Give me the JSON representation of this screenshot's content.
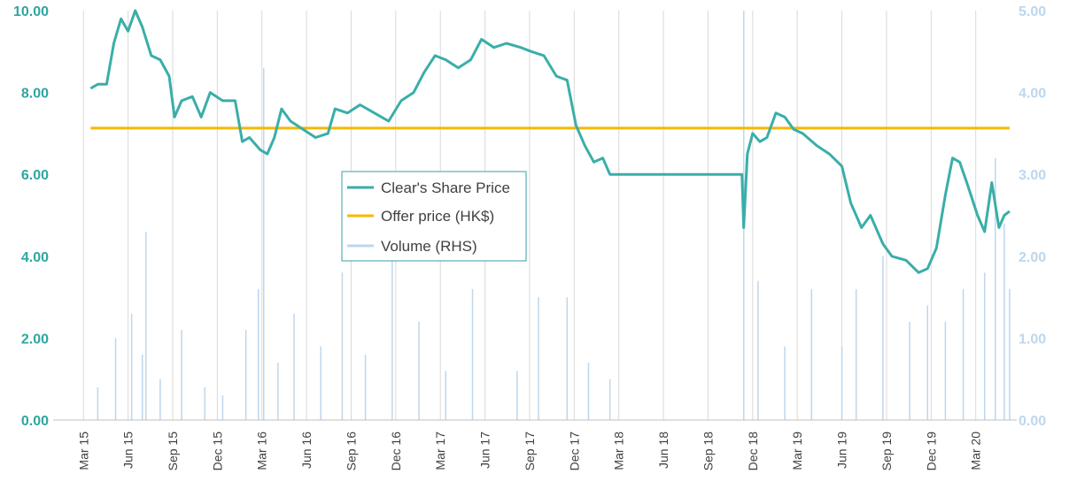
{
  "chart_data": {
    "type": "line",
    "title": "",
    "xlabel": "",
    "ylabel": "",
    "ylim": [
      0,
      10
    ],
    "y2lim": [
      0,
      5
    ],
    "yticks": [
      "0.00",
      "2.00",
      "4.00",
      "6.00",
      "8.00",
      "10.00"
    ],
    "y2ticks": [
      "0.00",
      "1.00",
      "2.00",
      "3.00",
      "4.00",
      "5.00"
    ],
    "xticks": [
      "Mar 15",
      "Jun 15",
      "Sep 15",
      "Dec 15",
      "Mar 16",
      "Jun 16",
      "Sep 16",
      "Dec 16",
      "Mar 17",
      "Jun 17",
      "Sep 17",
      "Dec 17",
      "Mar 18",
      "Jun 18",
      "Sep 18",
      "Dec 18",
      "Mar 19",
      "Jun 19",
      "Sep 19",
      "Dec 19",
      "Mar 20"
    ],
    "grid": true,
    "legend": "center",
    "colors": {
      "price": "#3aaea8",
      "offer": "#f5b800",
      "volume": "#bcd7ee",
      "grid": "#d9d9d9"
    },
    "series": [
      {
        "name": "Clear's Share Price",
        "axis": "left",
        "points": [
          [
            2015.21,
            8.1
          ],
          [
            2015.25,
            8.2
          ],
          [
            2015.3,
            8.2
          ],
          [
            2015.34,
            9.2
          ],
          [
            2015.38,
            9.8
          ],
          [
            2015.42,
            9.5
          ],
          [
            2015.46,
            10.0
          ],
          [
            2015.5,
            9.6
          ],
          [
            2015.55,
            8.9
          ],
          [
            2015.6,
            8.8
          ],
          [
            2015.65,
            8.4
          ],
          [
            2015.68,
            7.4
          ],
          [
            2015.72,
            7.8
          ],
          [
            2015.78,
            7.9
          ],
          [
            2015.83,
            7.4
          ],
          [
            2015.88,
            8.0
          ],
          [
            2015.95,
            7.8
          ],
          [
            2016.02,
            7.8
          ],
          [
            2016.06,
            6.8
          ],
          [
            2016.1,
            6.9
          ],
          [
            2016.16,
            6.6
          ],
          [
            2016.2,
            6.5
          ],
          [
            2016.24,
            6.9
          ],
          [
            2016.28,
            7.6
          ],
          [
            2016.33,
            7.3
          ],
          [
            2016.4,
            7.1
          ],
          [
            2016.47,
            6.9
          ],
          [
            2016.54,
            7.0
          ],
          [
            2016.58,
            7.6
          ],
          [
            2016.65,
            7.5
          ],
          [
            2016.72,
            7.7
          ],
          [
            2016.8,
            7.5
          ],
          [
            2016.88,
            7.3
          ],
          [
            2016.95,
            7.8
          ],
          [
            2017.02,
            8.0
          ],
          [
            2017.08,
            8.5
          ],
          [
            2017.14,
            8.9
          ],
          [
            2017.2,
            8.8
          ],
          [
            2017.27,
            8.6
          ],
          [
            2017.34,
            8.8
          ],
          [
            2017.4,
            9.3
          ],
          [
            2017.47,
            9.1
          ],
          [
            2017.54,
            9.2
          ],
          [
            2017.62,
            9.1
          ],
          [
            2017.68,
            9.0
          ],
          [
            2017.75,
            8.9
          ],
          [
            2017.82,
            8.4
          ],
          [
            2017.88,
            8.3
          ],
          [
            2017.93,
            7.2
          ],
          [
            2017.98,
            6.7
          ],
          [
            2018.03,
            6.3
          ],
          [
            2018.08,
            6.4
          ],
          [
            2018.12,
            6.0
          ],
          [
            2018.4,
            6.0
          ],
          [
            2018.7,
            6.0
          ],
          [
            2018.86,
            6.0
          ],
          [
            2018.87,
            4.7
          ],
          [
            2018.89,
            6.5
          ],
          [
            2018.92,
            7.0
          ],
          [
            2018.96,
            6.8
          ],
          [
            2019.0,
            6.9
          ],
          [
            2019.05,
            7.5
          ],
          [
            2019.1,
            7.4
          ],
          [
            2019.15,
            7.1
          ],
          [
            2019.2,
            7.0
          ],
          [
            2019.28,
            6.7
          ],
          [
            2019.35,
            6.5
          ],
          [
            2019.42,
            6.2
          ],
          [
            2019.47,
            5.3
          ],
          [
            2019.53,
            4.7
          ],
          [
            2019.58,
            5.0
          ],
          [
            2019.65,
            4.3
          ],
          [
            2019.7,
            4.0
          ],
          [
            2019.78,
            3.9
          ],
          [
            2019.85,
            3.6
          ],
          [
            2019.9,
            3.7
          ],
          [
            2019.95,
            4.2
          ],
          [
            2020.0,
            5.5
          ],
          [
            2020.04,
            6.4
          ],
          [
            2020.08,
            6.3
          ],
          [
            2020.12,
            5.8
          ],
          [
            2020.18,
            5.0
          ],
          [
            2020.22,
            4.6
          ],
          [
            2020.26,
            5.8
          ],
          [
            2020.3,
            4.7
          ],
          [
            2020.33,
            5.0
          ],
          [
            2020.36,
            5.1
          ]
        ]
      },
      {
        "name": "Offer price (HK$)",
        "axis": "left",
        "value": 7.13
      },
      {
        "name": "Volume (RHS)",
        "axis": "right",
        "type": "bar",
        "points": [
          [
            2015.25,
            0.4
          ],
          [
            2015.35,
            1.0
          ],
          [
            2015.44,
            1.3
          ],
          [
            2015.5,
            0.8
          ],
          [
            2015.52,
            2.3
          ],
          [
            2015.6,
            0.5
          ],
          [
            2015.72,
            1.1
          ],
          [
            2015.85,
            0.4
          ],
          [
            2015.95,
            0.3
          ],
          [
            2016.08,
            1.1
          ],
          [
            2016.15,
            1.6
          ],
          [
            2016.18,
            4.3
          ],
          [
            2016.26,
            0.7
          ],
          [
            2016.35,
            1.3
          ],
          [
            2016.5,
            0.9
          ],
          [
            2016.62,
            1.8
          ],
          [
            2016.75,
            0.8
          ],
          [
            2016.9,
            2.4
          ],
          [
            2017.05,
            1.2
          ],
          [
            2017.2,
            0.6
          ],
          [
            2017.35,
            1.6
          ],
          [
            2017.6,
            0.6
          ],
          [
            2017.72,
            1.5
          ],
          [
            2017.88,
            1.5
          ],
          [
            2018.0,
            0.7
          ],
          [
            2018.12,
            0.5
          ],
          [
            2018.87,
            5.0
          ],
          [
            2018.95,
            1.7
          ],
          [
            2019.1,
            0.9
          ],
          [
            2019.25,
            1.6
          ],
          [
            2019.42,
            0.9
          ],
          [
            2019.5,
            1.6
          ],
          [
            2019.65,
            2.0
          ],
          [
            2019.8,
            1.2
          ],
          [
            2019.9,
            1.4
          ],
          [
            2020.0,
            1.2
          ],
          [
            2020.1,
            1.6
          ],
          [
            2020.22,
            1.8
          ],
          [
            2020.28,
            3.2
          ],
          [
            2020.33,
            2.4
          ],
          [
            2020.36,
            1.6
          ]
        ]
      }
    ]
  }
}
